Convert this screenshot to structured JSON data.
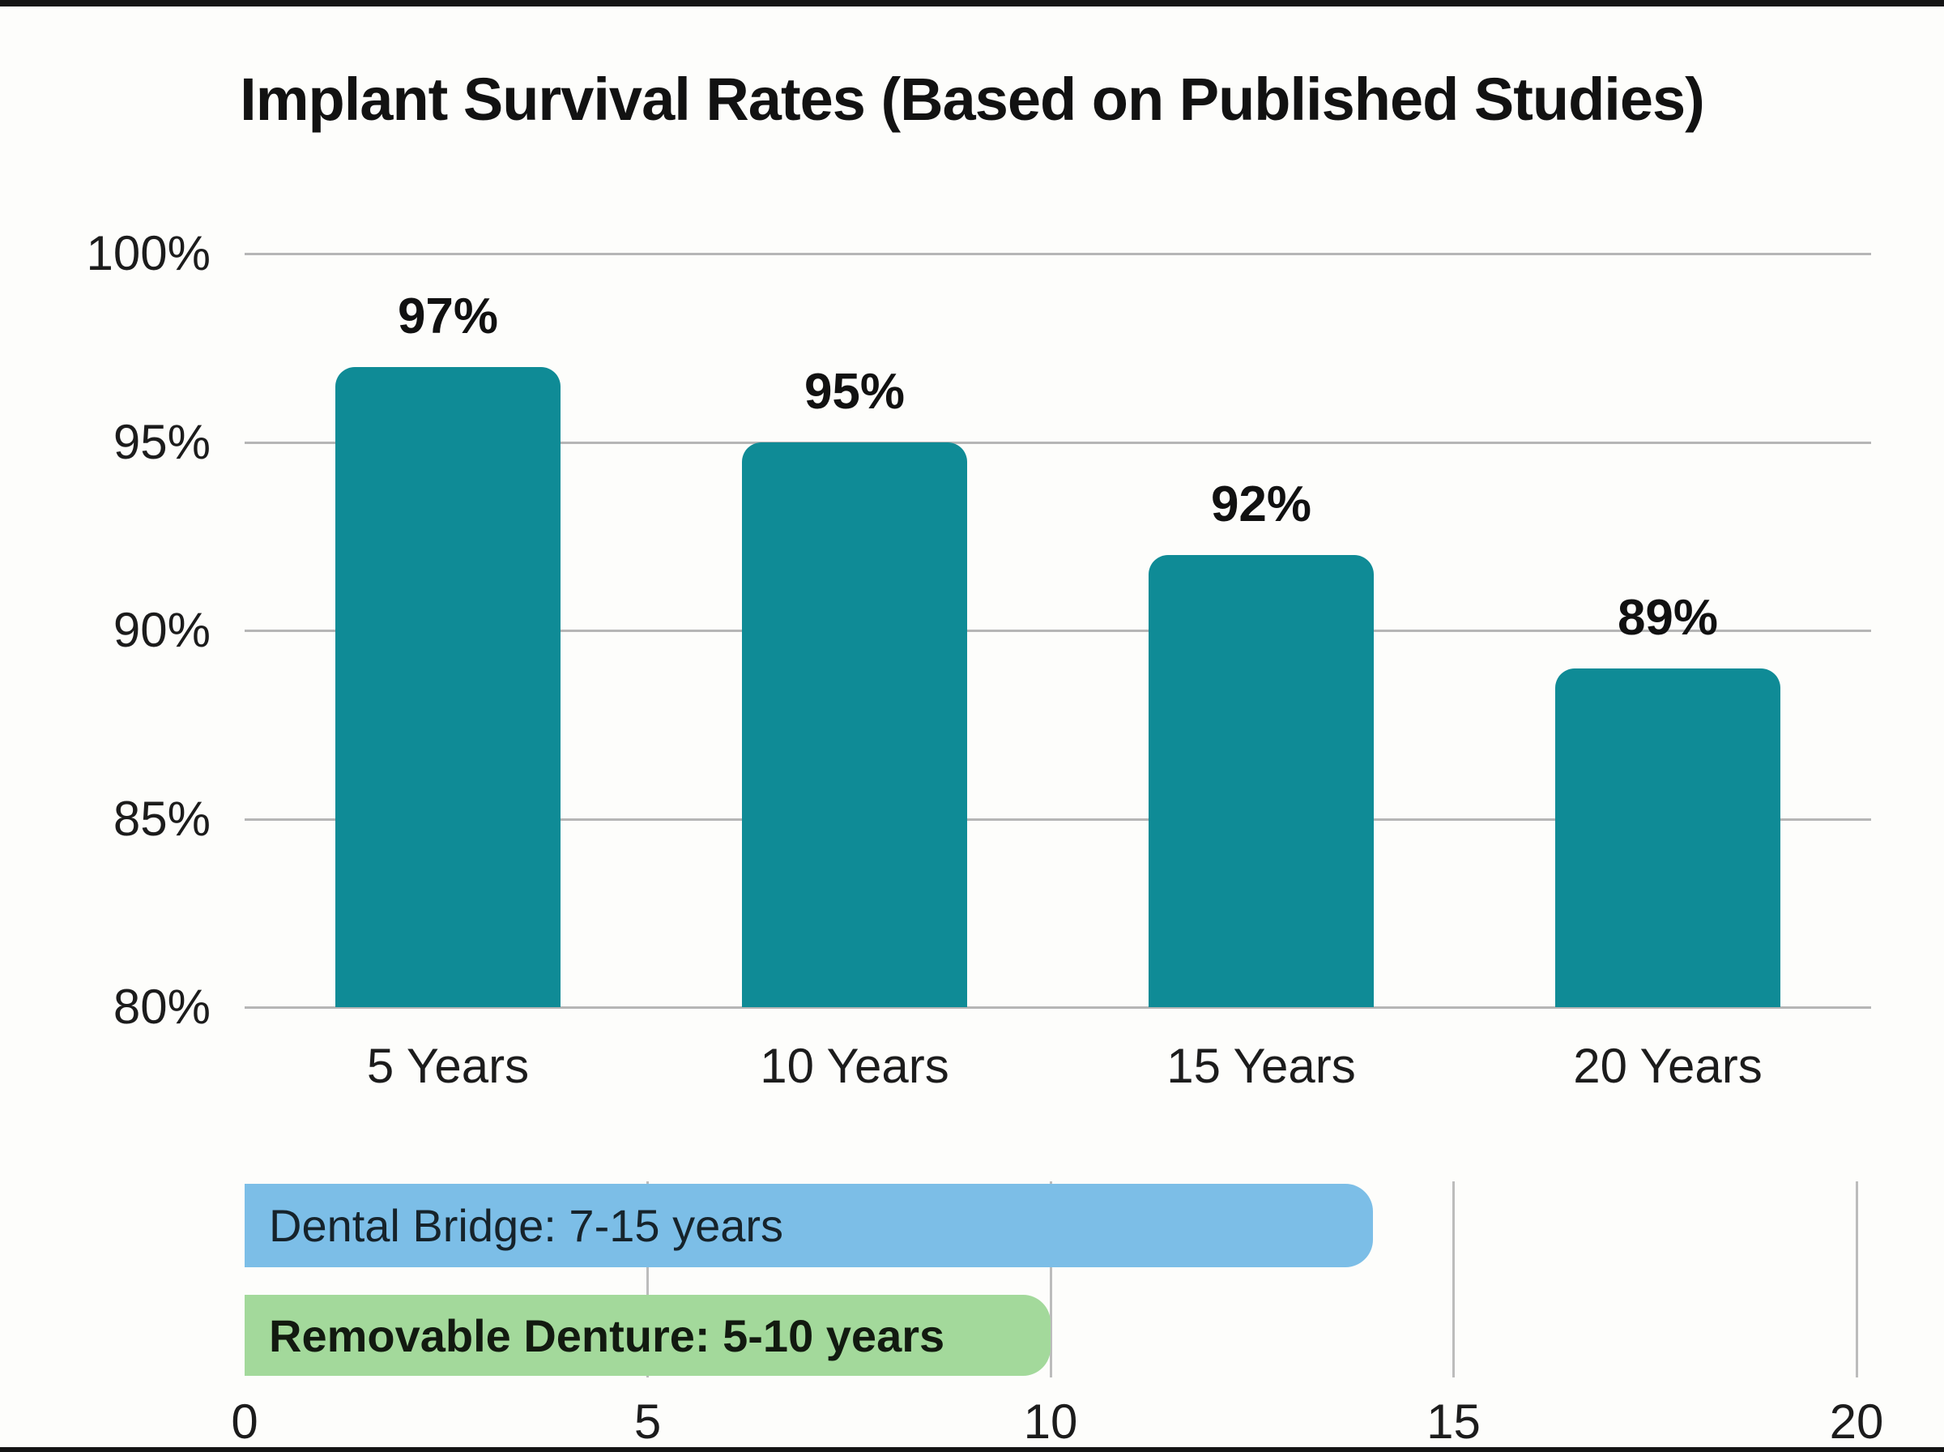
{
  "page": {
    "background": "#fdfdfb",
    "edge_bar_color": "#141414"
  },
  "title": "Implant Survival Rates (Based on Published Studies)",
  "chart_data": [
    {
      "type": "bar",
      "title": "Implant Survival Rates (Based on Published Studies)",
      "categories": [
        "5 Years",
        "10 Years",
        "15 Years",
        "20 Years"
      ],
      "values": [
        97,
        95,
        92,
        89
      ],
      "value_labels": [
        "97%",
        "95%",
        "92%",
        "89%"
      ],
      "xlabel": "",
      "ylabel": "",
      "ylim": [
        80,
        100
      ],
      "yticks": {
        "values": [
          100,
          95,
          90,
          85,
          80
        ],
        "labels": [
          "100%",
          "95%",
          "90%",
          "85%",
          "80%"
        ]
      },
      "grid": "horizontal",
      "legend": "none",
      "bar_color": "#0f8b96",
      "grid_color": "#b6b6b6"
    },
    {
      "type": "bar",
      "orientation": "horizontal",
      "xlim": [
        0,
        20
      ],
      "xticks": {
        "values": [
          0,
          5,
          10,
          15,
          20
        ],
        "labels": [
          "0",
          "5",
          "10",
          "15",
          "20"
        ]
      },
      "grid": "vertical",
      "grid_color": "#bcbcbc",
      "bars": [
        {
          "label": "Dental Bridge: 7-15 years",
          "value": 14,
          "color": "#7cbee7",
          "bold": false
        },
        {
          "label": "Removable Denture: 5-10 years",
          "value": 10,
          "color": "#a3d99b",
          "bold": true
        }
      ]
    }
  ]
}
